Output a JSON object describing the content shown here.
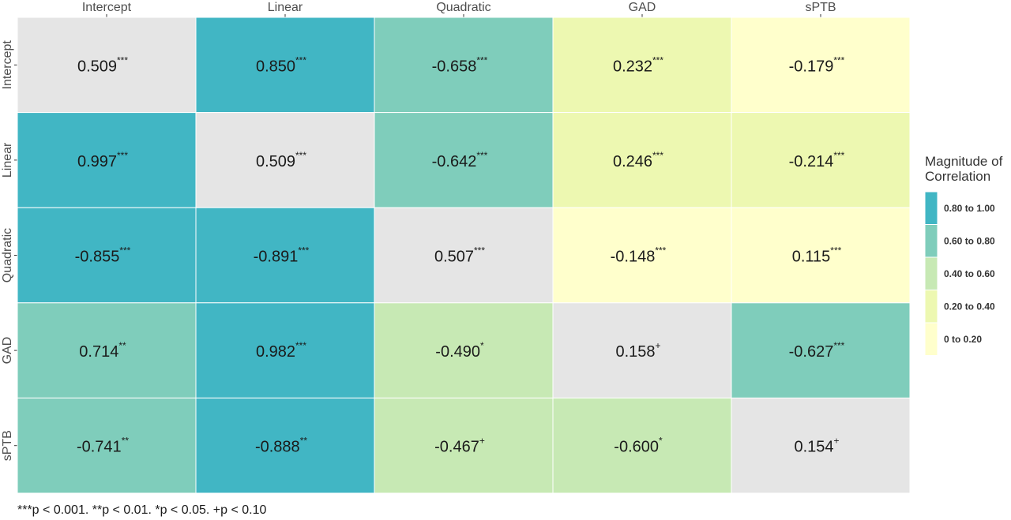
{
  "chart_data": {
    "type": "heatmap",
    "columns": [
      "Intercept",
      "Linear",
      "Quadratic",
      "GAD",
      "sPTB"
    ],
    "rows": [
      "Intercept",
      "Linear",
      "Quadratic",
      "GAD",
      "sPTB"
    ],
    "cells": [
      [
        {
          "value": "0.509",
          "sig": "***",
          "band": "diag"
        },
        {
          "value": "0.850",
          "sig": "***",
          "band": 0
        },
        {
          "value": "-0.658",
          "sig": "***",
          "band": 1
        },
        {
          "value": "0.232",
          "sig": "***",
          "band": 3
        },
        {
          "value": "-0.179",
          "sig": "***",
          "band": 4
        }
      ],
      [
        {
          "value": "0.997",
          "sig": "***",
          "band": 0
        },
        {
          "value": "0.509",
          "sig": "***",
          "band": "diag"
        },
        {
          "value": "-0.642",
          "sig": "***",
          "band": 1
        },
        {
          "value": "0.246",
          "sig": "***",
          "band": 3
        },
        {
          "value": "-0.214",
          "sig": "***",
          "band": 3
        }
      ],
      [
        {
          "value": "-0.855",
          "sig": "***",
          "band": 0
        },
        {
          "value": "-0.891",
          "sig": "***",
          "band": 0
        },
        {
          "value": "0.507",
          "sig": "***",
          "band": "diag"
        },
        {
          "value": "-0.148",
          "sig": "***",
          "band": 4
        },
        {
          "value": "0.115",
          "sig": "***",
          "band": 4
        }
      ],
      [
        {
          "value": "0.714",
          "sig": "**",
          "band": 1
        },
        {
          "value": "0.982",
          "sig": "***",
          "band": 0
        },
        {
          "value": "-0.490",
          "sig": "*",
          "band": 2
        },
        {
          "value": "0.158",
          "sig": "+",
          "band": "diag"
        },
        {
          "value": "-0.627",
          "sig": "***",
          "band": 1
        }
      ],
      [
        {
          "value": "-0.741",
          "sig": "**",
          "band": 1
        },
        {
          "value": "-0.888",
          "sig": "**",
          "band": 0
        },
        {
          "value": "-0.467",
          "sig": "+",
          "band": 2
        },
        {
          "value": "-0.600",
          "sig": "*",
          "band": 2
        },
        {
          "value": "0.154",
          "sig": "+",
          "band": "diag"
        }
      ]
    ],
    "legend": {
      "title": [
        "Magnitude of",
        "Correlation"
      ],
      "placement": "right",
      "bands": [
        {
          "label": "0.80 to 1.00",
          "color": "#41b6c4"
        },
        {
          "label": "0.60 to 0.80",
          "color": "#7fcdbb"
        },
        {
          "label": "0.40 to 0.60",
          "color": "#c7e9b4"
        },
        {
          "label": "0.20 to 0.40",
          "color": "#edf8b1"
        },
        {
          "label": "0 to 0.20",
          "color": "#ffffcc"
        }
      ]
    },
    "diagonal_color": "#e5e5e5",
    "footnote": "***p < 0.001. **p < 0.01. *p < 0.05. +p < 0.10"
  }
}
